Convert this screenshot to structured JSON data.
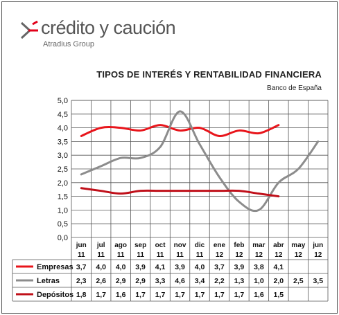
{
  "brand": {
    "name": "crédito y caución",
    "sub": "Atradius Group",
    "arrow_color": "#e2001a",
    "arrow_dark": "#666666"
  },
  "chart_data": {
    "type": "line",
    "title": "TIPOS DE INTERÉS Y RENTABILIDAD FINANCIERA",
    "subtitle": "Banco de España",
    "ylim": [
      0,
      5
    ],
    "yticks": [
      "0,0",
      "0,5",
      "1,0",
      "1,5",
      "2,0",
      "2,5",
      "3,0",
      "3,5",
      "4,0",
      "4,5",
      "5,0"
    ],
    "grid": true,
    "categories": [
      [
        "jun",
        "11"
      ],
      [
        "jul",
        "11"
      ],
      [
        "ago",
        "11"
      ],
      [
        "sep",
        "11"
      ],
      [
        "oct",
        "11"
      ],
      [
        "nov",
        "11"
      ],
      [
        "dic",
        "11"
      ],
      [
        "ene",
        "12"
      ],
      [
        "feb",
        "12"
      ],
      [
        "mar",
        "12"
      ],
      [
        "abr",
        "12"
      ],
      [
        "may",
        "12"
      ],
      [
        "jun",
        "12"
      ]
    ],
    "series": [
      {
        "name": "Empresas",
        "color": "#e8151b",
        "values": [
          3.7,
          4.0,
          4.0,
          3.9,
          4.1,
          3.9,
          4.0,
          3.7,
          3.9,
          3.8,
          4.1,
          null,
          null
        ],
        "labels": [
          "3,7",
          "4,0",
          "4,0",
          "3,9",
          "4,1",
          "3,9",
          "4,0",
          "3,7",
          "3,9",
          "3,8",
          "4,1",
          "",
          ""
        ]
      },
      {
        "name": "Letras",
        "color": "#8c8c8c",
        "values": [
          2.3,
          2.6,
          2.9,
          2.9,
          3.3,
          4.6,
          3.4,
          2.2,
          1.3,
          1.0,
          2.0,
          2.5,
          3.5
        ],
        "labels": [
          "2,3",
          "2,6",
          "2,9",
          "2,9",
          "3,3",
          "4,6",
          "3,4",
          "2,2",
          "1,3",
          "1,0",
          "2,0",
          "2,5",
          "3,5"
        ]
      },
      {
        "name": "Depósitos",
        "color": "#c0101a",
        "values": [
          1.8,
          1.7,
          1.6,
          1.7,
          1.7,
          1.7,
          1.7,
          1.7,
          1.7,
          1.6,
          1.5,
          null,
          null
        ],
        "labels": [
          "1,8",
          "1,7",
          "1,6",
          "1,7",
          "1,7",
          "1,7",
          "1,7",
          "1,7",
          "1,7",
          "1,6",
          "1,5",
          "",
          ""
        ]
      }
    ]
  }
}
